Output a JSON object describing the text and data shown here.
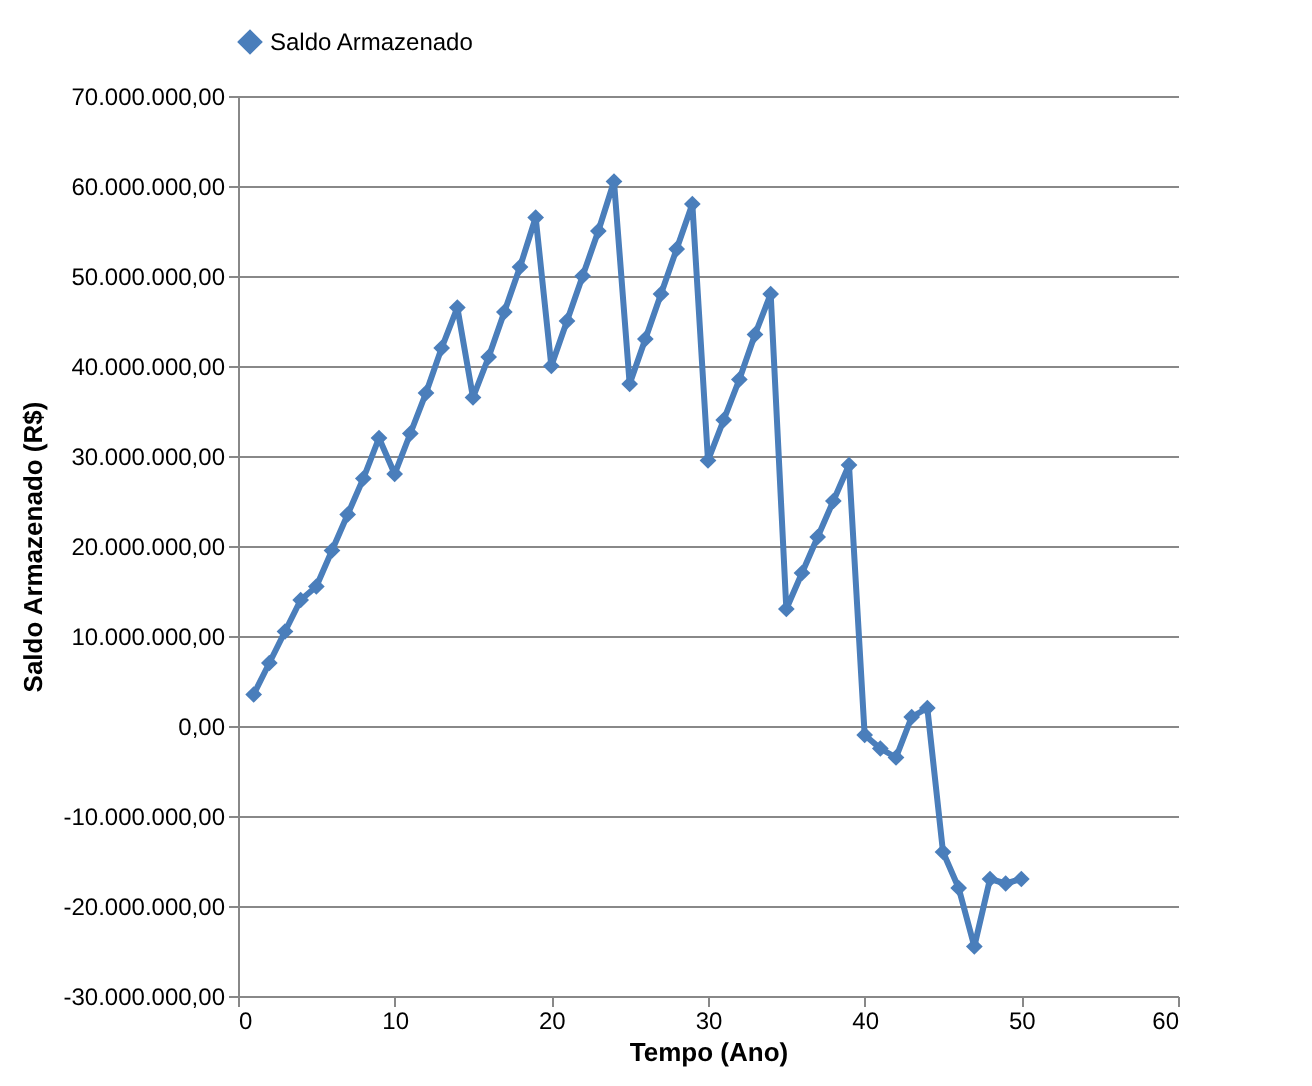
{
  "chart_data": {
    "type": "line",
    "xlabel": "Tempo (Ano)",
    "ylabel": "Saldo Armazenado (R$)",
    "x": [
      1,
      2,
      3,
      4,
      5,
      6,
      7,
      8,
      9,
      10,
      11,
      12,
      13,
      14,
      15,
      16,
      17,
      18,
      19,
      20,
      21,
      22,
      23,
      24,
      25,
      26,
      27,
      28,
      29,
      30,
      31,
      32,
      33,
      34,
      35,
      36,
      37,
      38,
      39,
      40,
      41,
      42,
      43,
      44,
      45,
      46,
      47,
      48,
      49,
      50
    ],
    "series": [
      {
        "name": "Saldo Armazenado",
        "color": "#4a7ebb",
        "values": [
          3500000,
          7000000,
          10500000,
          14000000,
          15500000,
          19500000,
          23500000,
          27500000,
          32000000,
          28000000,
          32500000,
          37000000,
          42000000,
          46500000,
          36500000,
          41000000,
          46000000,
          51000000,
          56500000,
          40000000,
          45000000,
          50000000,
          55000000,
          60500000,
          38000000,
          43000000,
          48000000,
          53000000,
          58000000,
          29500000,
          34000000,
          38500000,
          43500000,
          48000000,
          13000000,
          17000000,
          21000000,
          25000000,
          29000000,
          -1000000,
          -2500000,
          -3500000,
          1000000,
          2000000,
          -14000000,
          -18000000,
          -24500000,
          -17000000,
          -17500000,
          -17000000
        ]
      }
    ],
    "xlim": [
      0,
      60
    ],
    "xticks": [
      0,
      10,
      20,
      30,
      40,
      50,
      60
    ],
    "ylim": [
      -30000000,
      70000000
    ],
    "yticks": [
      {
        "value": -30000000,
        "label": "-30.000.000,00"
      },
      {
        "value": -20000000,
        "label": "-20.000.000,00"
      },
      {
        "value": -10000000,
        "label": "-10.000.000,00"
      },
      {
        "value": 0,
        "label": "0,00"
      },
      {
        "value": 10000000,
        "label": "10.000.000,00"
      },
      {
        "value": 20000000,
        "label": "20.000.000,00"
      },
      {
        "value": 30000000,
        "label": "30.000.000,00"
      },
      {
        "value": 40000000,
        "label": "40.000.000,00"
      },
      {
        "value": 50000000,
        "label": "50.000.000,00"
      },
      {
        "value": 60000000,
        "label": "60.000.000,00"
      },
      {
        "value": 70000000,
        "label": "70.000.000,00"
      }
    ],
    "grid": "y",
    "legend": "top",
    "marker": "diamond",
    "line_style": "solid"
  }
}
